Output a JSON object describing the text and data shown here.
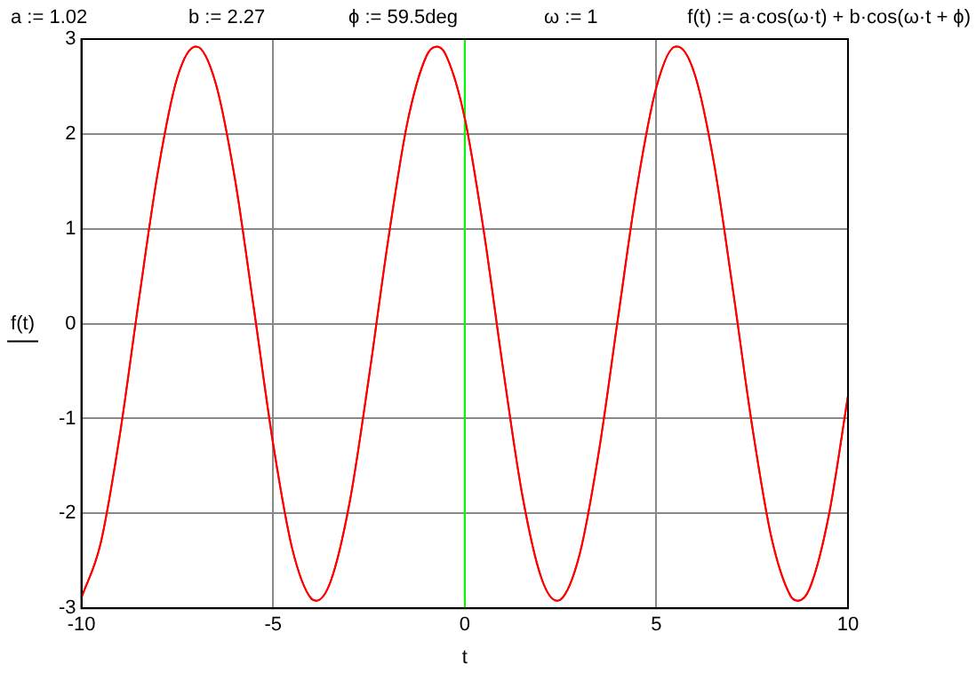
{
  "chart_data": {
    "type": "line",
    "xlabel": "t",
    "ylabel": "f(t)",
    "annotations": [
      "a := 1.02",
      "b := 2.27",
      "ϕ := 59.5deg",
      "ω := 1",
      "f(t) := a·cos(ω·t) + b·cos(ω·t + ϕ)"
    ],
    "series": [
      {
        "color": "#ff0000",
        "x": [
          -10,
          -9.5,
          -9,
          -8.5,
          -8,
          -7.5,
          -7.016,
          -7,
          -6.5,
          -6,
          -5.5,
          -5,
          -4.5,
          -4,
          -3.875,
          -3.5,
          -3,
          -2.5,
          -2,
          -1.5,
          -1,
          -0.733,
          -0.5,
          0,
          0.5,
          1,
          1.5,
          2,
          2.408,
          2.5,
          3,
          3.5,
          4,
          4.5,
          5,
          5.5,
          5.55,
          6,
          6.5,
          7,
          7.5,
          8,
          8.5,
          8.691,
          9,
          9.5,
          10
        ],
        "values": [
          -2.89,
          -2.32,
          -1.18,
          0.25,
          1.61,
          2.59,
          2.92,
          2.92,
          2.54,
          1.54,
          0.16,
          -1.26,
          -2.37,
          -2.9,
          -2.92,
          -2.72,
          -1.88,
          -0.57,
          0.87,
          2.11,
          2.82,
          2.92,
          2.84,
          2.17,
          0.97,
          -0.47,
          -1.8,
          -2.68,
          -2.92,
          -2.91,
          -2.43,
          -1.35,
          0.06,
          1.45,
          2.49,
          2.92,
          2.92,
          2.63,
          1.7,
          0.35,
          -1.08,
          -2.25,
          -2.87,
          -2.92,
          -2.79,
          -2.02,
          -0.76
        ]
      }
    ],
    "xlim": [
      -10,
      10
    ],
    "ylim": [
      -3,
      3
    ],
    "xticks": [
      -10,
      -5,
      0,
      5,
      10
    ],
    "yticks": [
      -3,
      -2,
      -1,
      0,
      1,
      2,
      3
    ],
    "grid": true,
    "legend": false,
    "marker": "none",
    "line_style": "solid",
    "ref_lines": [
      {
        "axis": "x",
        "value": 0,
        "color": "#00ff00"
      }
    ]
  }
}
